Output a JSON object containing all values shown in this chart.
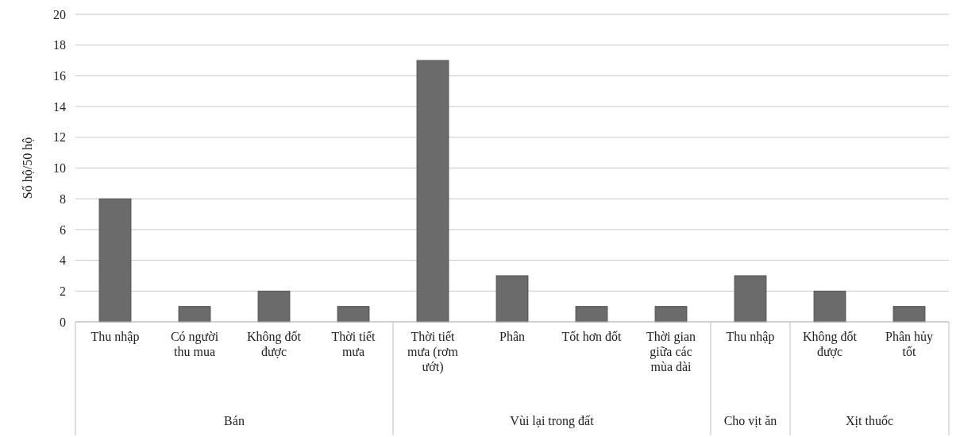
{
  "chart_data": {
    "type": "bar",
    "ylabel": "Số hộ/50 hộ",
    "categories": [
      "Thu nhập",
      "Có người thu mua",
      "Không đốt được",
      "Thời tiết mưa",
      "Thời tiết mưa (rơm ướt)",
      "Phân",
      "Tốt hơn đốt",
      "Thời gian giữa các mùa dài",
      "Thu nhập",
      "Không đốt được",
      "Phân hủy tốt"
    ],
    "values": [
      8,
      1,
      2,
      1,
      17,
      3,
      1,
      1,
      3,
      2,
      1
    ],
    "color": "#6b6b6b",
    "ylim": [
      0,
      20
    ],
    "yticks": [
      0,
      2,
      4,
      6,
      8,
      10,
      12,
      14,
      16,
      18,
      20
    ],
    "grid": "y",
    "annotations": [
      "Bán",
      "Vùi lại trong đất",
      "Cho vịt ăn",
      "Xịt thuốc"
    ]
  }
}
